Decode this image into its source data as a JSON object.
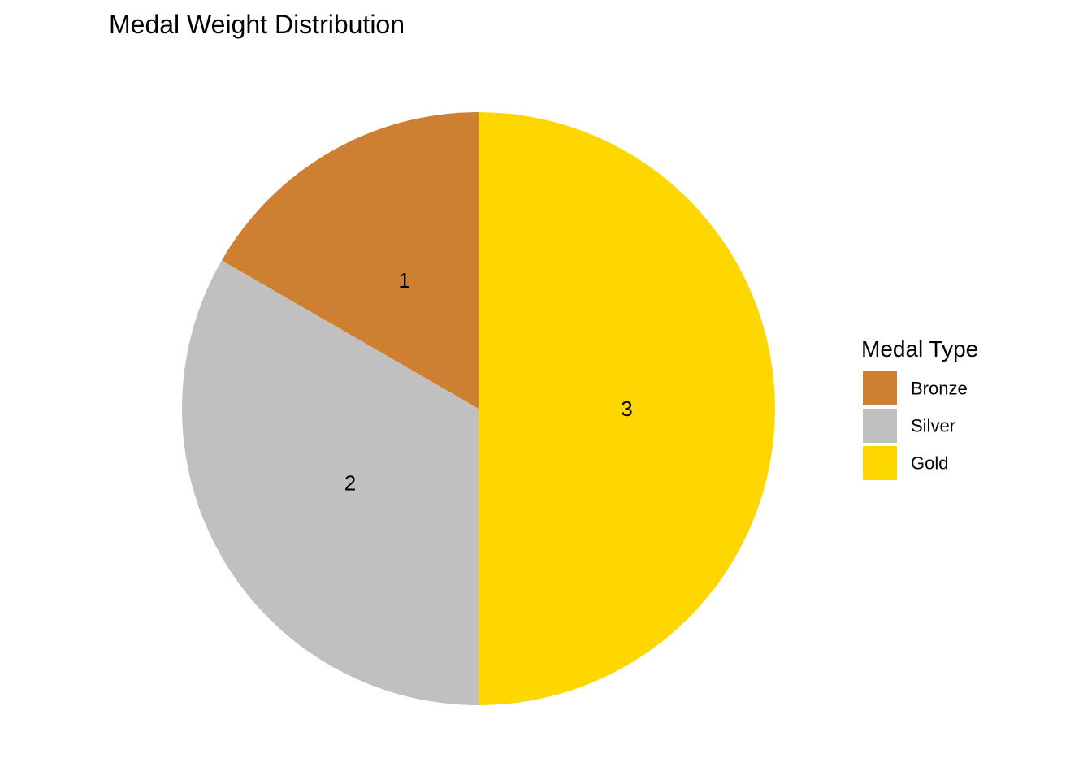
{
  "chart_data": {
    "type": "pie",
    "title": "Medal Weight Distribution",
    "categories": [
      "Bronze",
      "Silver",
      "Gold"
    ],
    "values": [
      1,
      2,
      3
    ],
    "data_labels": [
      "1",
      "2",
      "3"
    ],
    "colors": [
      "#CD7F32",
      "#C0C0C0",
      "#FFD700"
    ],
    "start": "12 o'clock",
    "direction": "counterclockwise",
    "legend": {
      "title": "Medal Type",
      "placement": "right",
      "entries": [
        "Bronze",
        "Silver",
        "Gold"
      ]
    }
  }
}
